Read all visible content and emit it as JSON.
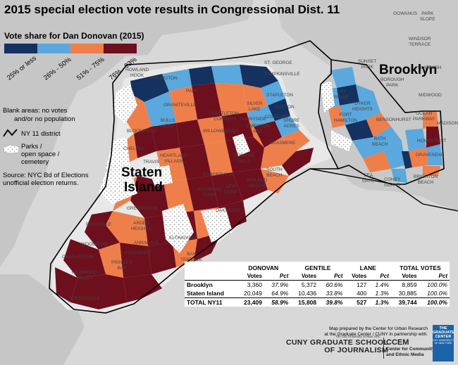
{
  "title": "2015 special election vote results in Congressional Dist. 11",
  "legend": {
    "title": "Vote share for Dan Donovan (2015)",
    "classes": [
      {
        "label": "25% or less",
        "color": "#14315f"
      },
      {
        "label": "26% - 50%",
        "color": "#5aa8dd"
      },
      {
        "label": "51% - 75%",
        "color": "#ef7f4a"
      },
      {
        "label": "76% - 93%",
        "color": "#6e0f1e"
      }
    ],
    "blank_note_1": "Blank areas: no votes",
    "blank_note_2": "and/or no population",
    "district_label": "NY 11 district",
    "parks_label_1": "Parks /",
    "parks_label_2": "open space /",
    "parks_label_3": "cemetery",
    "source_1": "Source: NYC Bd of Elections",
    "source_2": "unofficial election returns."
  },
  "boroughs": {
    "brooklyn": "Brooklyn",
    "staten_island_1": "Staten",
    "staten_island_2": "Island"
  },
  "neighborhoods": [
    "GOWANUS",
    "PARK\nSLOPE",
    "WINDSOR\nTERRACE",
    "SUNSET\nPARK",
    "FLATBUSH",
    "BOROUGH\nPARK",
    "MIDWOOD",
    "BAY\nRIDGE",
    "DYKER\nHEIGHTS",
    "BENSONHURST",
    "OCEAN\nPARKWAY",
    "MADISON",
    "HOMECREST",
    "GRAVESEND",
    "BATH\nBEACH",
    "SEA\nGATE",
    "CONEY\nISLAND",
    "BRIGHTON\nBEACH",
    "FORT\nHAMILTON",
    "ST. GEORGE",
    "TOMPKINSVILLE",
    "STAPLETON",
    "CLIFTON",
    "CONCORD",
    "SHORE\nACRES",
    "ARLINGTON",
    "HOWLAND\nHOOK",
    "GRANITEVILLE",
    "BULLS\nHEAD",
    "BLOOMFIELD",
    "CASTLETON\nCORNERS",
    "WILLOWBROOK",
    "HEARTLAND\nVILLAGE",
    "CHELSEA",
    "TRAVIS",
    "EMERSON\nHILL",
    "GRASMERE",
    "DONGAN\nHILLS",
    "SOUTH\nBEACH",
    "MIDLAND\nBEACH",
    "NEW\nDORP",
    "RICHMOND\nTOWN",
    "EGBERTVILLE",
    "GREENRIDGE",
    "ARDEN\nHEIGHTS",
    "ELTINGVILLE",
    "ANNADALE",
    "HUGUENOT",
    "PRINCE'S\nBAY",
    "WOODROW",
    "ROSSVILLE",
    "CHARLESTON",
    "RICHMOND\nVALLEY",
    "TOTTENVILLE",
    "OAKWOOD",
    "BAY\nTERRACE",
    "SILVER\nLAKE",
    "SUNNYSIDE",
    "PARK"
  ],
  "table": {
    "headers": {
      "donovan": "DONOVAN",
      "gentile": "GENTILE",
      "lane": "LANE",
      "total": "TOTAL VOTES"
    },
    "sub": {
      "votes": "Votes",
      "pct": "Pct"
    },
    "rows": [
      {
        "name": "Brooklyn",
        "d_votes": "3,360",
        "d_pct": "37.9%",
        "g_votes": "5,372",
        "g_pct": "60.6%",
        "l_votes": "127",
        "l_pct": "1.4%",
        "t_votes": "8,859",
        "t_pct": "100.0%"
      },
      {
        "name": "Staten Island",
        "d_votes": "20,049",
        "d_pct": "64.9%",
        "g_votes": "10,436",
        "g_pct": "33.8%",
        "l_votes": "400",
        "l_pct": "1.3%",
        "t_votes": "30,885",
        "t_pct": "100.0%"
      },
      {
        "name": "TOTAL NY11",
        "d_votes": "23,409",
        "d_pct": "58.9%",
        "g_votes": "15,808",
        "g_pct": "39.8%",
        "l_votes": "527",
        "l_pct": "1.3%",
        "t_votes": "39,744",
        "t_pct": "100.0%"
      }
    ]
  },
  "credit": {
    "line1": "Map prepared by the Center for Urban Research",
    "line2": "at the Graduate Center / CUNY in partnership with:",
    "cuny_small": "The City University of New York",
    "cuny_1": "CUNY GRADUATE SCHOOL",
    "cuny_2": "OF JOURNALISM",
    "ccem_1": "CCEM",
    "ccem_2": "Center for Community",
    "ccem_3": "and Ethnic Media",
    "gc_1": "THE",
    "gc_2": "GRADUATE",
    "gc_3": "CENTER",
    "gc_4": "CITY UNIVERSITY OF NEW YORK"
  }
}
